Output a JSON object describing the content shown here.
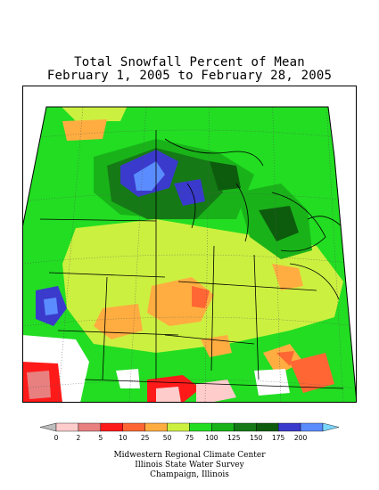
{
  "title": {
    "line1": "Total Snowfall Percent of Mean",
    "line2": "February 1, 2005 to February 28, 2005"
  },
  "legend": {
    "bins": [
      {
        "color": "#bdbdbd"
      },
      {
        "color": "#ffcccc"
      },
      {
        "color": "#e88080"
      },
      {
        "color": "#ff1a1a"
      },
      {
        "color": "#ff6633"
      },
      {
        "color": "#ffad40"
      },
      {
        "color": "#ccf040"
      },
      {
        "color": "#22dd22"
      },
      {
        "color": "#19b319"
      },
      {
        "color": "#157a15"
      },
      {
        "color": "#0d5c0d"
      },
      {
        "color": "#3a3acc"
      },
      {
        "color": "#5a8cff"
      },
      {
        "color": "#7ad6ff"
      }
    ],
    "ticks": [
      "0",
      "2",
      "5",
      "10",
      "25",
      "50",
      "75",
      "100",
      "125",
      "150",
      "175",
      "200"
    ]
  },
  "credits": {
    "line1": "Midwestern Regional Climate Center",
    "line2": "Illinois State Water Survey",
    "line3": "Champaign, Illinois"
  }
}
